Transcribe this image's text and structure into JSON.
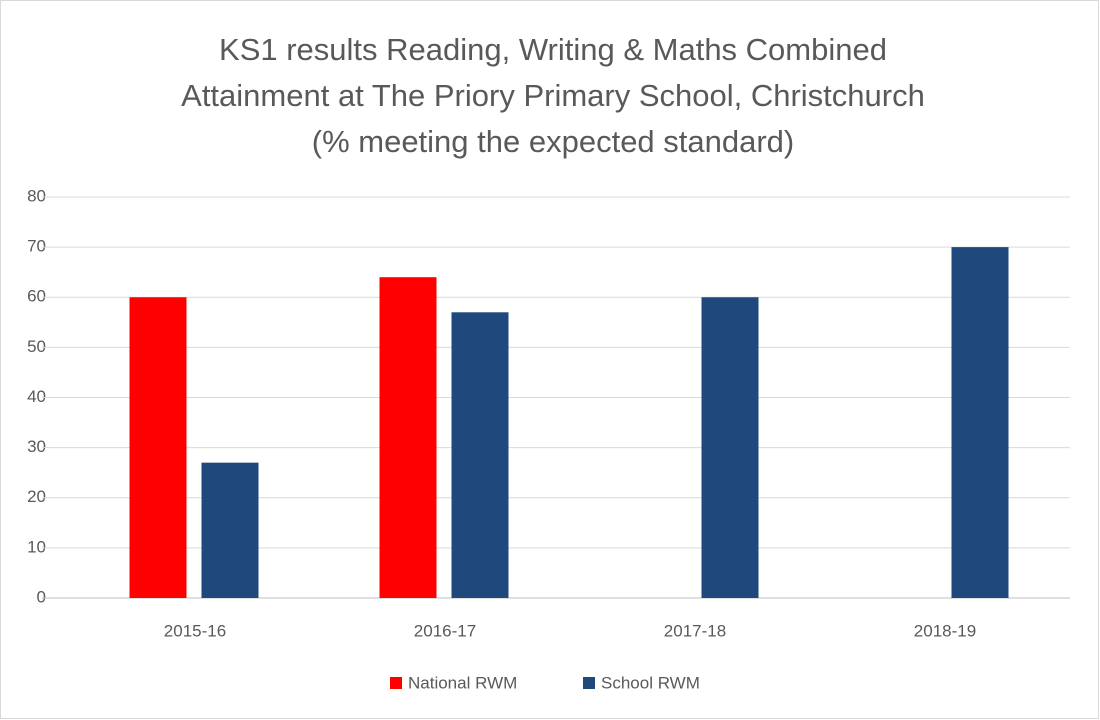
{
  "chart_data": {
    "type": "bar",
    "title": [
      "KS1 results Reading, Writing & Maths Combined",
      "Attainment at The Priory Primary School, Christchurch",
      "(% meeting the expected standard)"
    ],
    "categories": [
      "2015-16",
      "2016-17",
      "2017-18",
      "2018-19"
    ],
    "series": [
      {
        "name": "National RWM",
        "color": "#ff0000",
        "values": [
          60,
          64,
          null,
          null
        ]
      },
      {
        "name": "School RWM",
        "color": "#1f497d",
        "values": [
          27,
          57,
          60,
          70
        ]
      }
    ],
    "ylim": [
      0,
      80
    ],
    "yticks": [
      0,
      10,
      20,
      30,
      40,
      50,
      60,
      70,
      80
    ],
    "grid": true,
    "legend": "bottom"
  }
}
